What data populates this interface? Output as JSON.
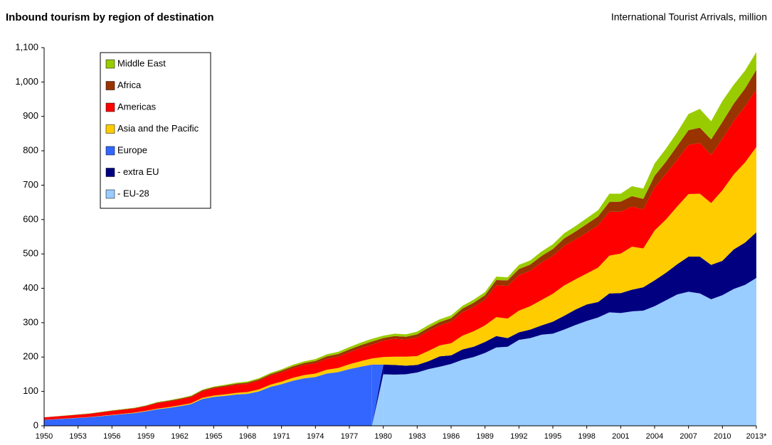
{
  "chart_data": {
    "type": "stacked-area",
    "title": "Inbound tourism by region of destination",
    "subtitle": "International Tourist Arrivals, million",
    "categories": [
      "1950",
      null,
      null,
      "1953",
      null,
      null,
      "1956",
      null,
      null,
      "1959",
      null,
      null,
      "1962",
      null,
      null,
      "1965",
      null,
      null,
      "1968",
      null,
      null,
      "1971",
      null,
      null,
      "1974",
      null,
      null,
      "1977",
      null,
      null,
      "1980",
      null,
      null,
      "1983",
      null,
      null,
      "1986",
      null,
      null,
      "1989",
      null,
      null,
      "1992",
      null,
      null,
      "1995",
      null,
      null,
      "1998",
      null,
      null,
      "2001",
      null,
      null,
      "2004",
      null,
      null,
      "2007",
      null,
      null,
      "2010",
      null,
      null,
      "2013*"
    ],
    "ylim": [
      0,
      1100
    ],
    "yticks": [
      0,
      100,
      200,
      300,
      400,
      500,
      600,
      700,
      800,
      900,
      {
        "value": 1000,
        "label": "1,000"
      },
      {
        "value": 1100,
        "label": "1,100"
      }
    ],
    "grid": false,
    "legend": "upper left",
    "series": [
      {
        "name": "- EU-28",
        "color": "#99ccff",
        "values": [
          null,
          null,
          null,
          null,
          null,
          null,
          null,
          null,
          null,
          null,
          null,
          null,
          null,
          null,
          null,
          null,
          null,
          null,
          null,
          null,
          null,
          null,
          null,
          null,
          null,
          null,
          null,
          null,
          null,
          null,
          150,
          149,
          150,
          155,
          165,
          172,
          180,
          192,
          200,
          212,
          228,
          230,
          250,
          255,
          265,
          268,
          280,
          293,
          305,
          315,
          330,
          328,
          333,
          335,
          348,
          365,
          382,
          390,
          385,
          368,
          380,
          398,
          410,
          430
        ]
      },
      {
        "name": "- extra EU",
        "color": "#000080",
        "values": [
          null,
          null,
          null,
          null,
          null,
          null,
          null,
          null,
          null,
          null,
          null,
          null,
          null,
          null,
          null,
          null,
          null,
          null,
          null,
          null,
          null,
          null,
          null,
          null,
          null,
          null,
          null,
          null,
          null,
          null,
          28,
          28,
          25,
          22,
          23,
          30,
          25,
          30,
          30,
          32,
          33,
          25,
          22,
          25,
          27,
          35,
          40,
          45,
          48,
          45,
          55,
          58,
          63,
          68,
          75,
          80,
          88,
          102,
          107,
          100,
          100,
          115,
          123,
          133
        ]
      },
      {
        "name": "Europe",
        "color": "#3366ff",
        "values": [
          17,
          19,
          21,
          23,
          25,
          28,
          31,
          34,
          37,
          42,
          48,
          52,
          57,
          63,
          78,
          84,
          87,
          91,
          93,
          100,
          113,
          121,
          131,
          138,
          142,
          152,
          156,
          165,
          172,
          178,
          null,
          null,
          null,
          null,
          null,
          null,
          null,
          null,
          null,
          null,
          null,
          null,
          null,
          null,
          null,
          null,
          null,
          null,
          null,
          null,
          null,
          null,
          null,
          null,
          null,
          null,
          null,
          null,
          null,
          null,
          null,
          null,
          null,
          null
        ]
      },
      {
        "name": "Asia and the Pacific",
        "color": "#ffcc00",
        "values": [
          0.2,
          0.3,
          0.4,
          0.5,
          0.6,
          0.8,
          1,
          1.2,
          1.5,
          1.8,
          2,
          2.3,
          2.6,
          3,
          3.5,
          4,
          4.5,
          5,
          5.5,
          6,
          6.5,
          7.5,
          8.5,
          9.5,
          10,
          11,
          12,
          14,
          16,
          18,
          22,
          24,
          26,
          26,
          30,
          32,
          35,
          40,
          45,
          48,
          55,
          57,
          63,
          68,
          74,
          81,
          88,
          88,
          90,
          100,
          110,
          115,
          125,
          113,
          145,
          155,
          168,
          182,
          183,
          180,
          205,
          218,
          233,
          248
        ]
      },
      {
        "name": "Americas",
        "color": "#ff0000",
        "values": [
          7,
          7.5,
          8,
          8.5,
          9,
          10,
          11,
          11.5,
          12,
          13,
          16,
          16.5,
          17,
          17.5,
          19,
          21,
          22,
          23,
          23.5,
          25,
          26,
          27,
          28,
          29,
          30,
          32,
          33,
          35,
          38,
          40,
          48,
          52,
          50,
          54,
          58,
          58,
          63,
          68,
          71,
          75,
          93,
          95,
          103,
          103,
          109,
          110,
          115,
          116,
          119,
          123,
          128,
          122,
          117,
          113,
          125,
          133,
          136,
          143,
          148,
          140,
          150,
          156,
          163,
          168
        ]
      },
      {
        "name": "Africa",
        "color": "#993300",
        "values": [
          0.5,
          0.6,
          0.7,
          0.8,
          0.9,
          1,
          1.1,
          1.2,
          1.3,
          1.5,
          1.7,
          2,
          2.2,
          2.5,
          2.8,
          3,
          3.3,
          3.6,
          3.9,
          4.2,
          4.5,
          5,
          5.5,
          6,
          6.5,
          7,
          7.5,
          8,
          8.5,
          9,
          7,
          8,
          8,
          9,
          9,
          10,
          10,
          11,
          12,
          13,
          15,
          16,
          18,
          18,
          19,
          20,
          22,
          23,
          25,
          26,
          28,
          29,
          30,
          31,
          34,
          35,
          40,
          43,
          44,
          45,
          49,
          50,
          52,
          56
        ]
      },
      {
        "name": "Middle East",
        "color": "#99cc00",
        "values": [
          0.2,
          0.3,
          0.4,
          0.5,
          0.6,
          0.7,
          0.8,
          0.9,
          1,
          1.1,
          1.2,
          1.4,
          1.6,
          1.8,
          2,
          2.3,
          2.5,
          2.7,
          3,
          3.3,
          3.6,
          4,
          4.5,
          5,
          5.5,
          6,
          6.5,
          7,
          7.5,
          8,
          7,
          7,
          7,
          8,
          8,
          8,
          8,
          8,
          9,
          9,
          10,
          9,
          12,
          12,
          13,
          14,
          15,
          16,
          17,
          18,
          24,
          23,
          29,
          30,
          36,
          38,
          40,
          47,
          55,
          53,
          61,
          55,
          52,
          52
        ]
      }
    ]
  }
}
